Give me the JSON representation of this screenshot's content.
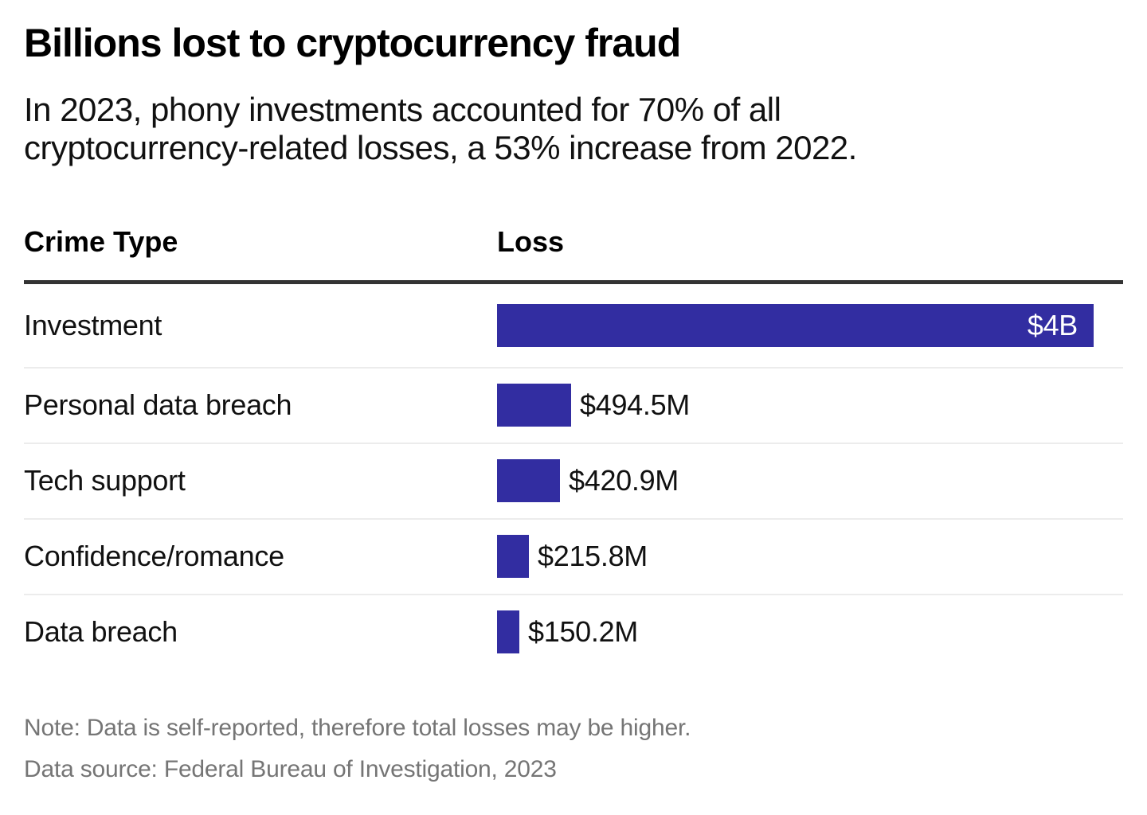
{
  "header": {
    "title": "Billions lost to cryptocurrency fraud",
    "subtitle_lines": [
      "In 2023, phony investments accounted for 70% of all",
      "cryptocurrency-related losses, a 53% increase from 2022."
    ]
  },
  "table": {
    "col_crime_type": "Crime Type",
    "col_loss": "Loss"
  },
  "chart_data": {
    "type": "bar",
    "orientation": "horizontal",
    "title": "Billions lost to cryptocurrency fraud",
    "subtitle": "In 2023, phony investments accounted for 70% of all cryptocurrency-related losses, a 53% increase from 2022.",
    "categories": [
      "Investment",
      "Personal data breach",
      "Tech support",
      "Confidence/romance",
      "Data breach"
    ],
    "values_millions_usd": [
      4000,
      494.5,
      420.9,
      215.8,
      150.2
    ],
    "value_labels": [
      "$4B",
      "$494.5M",
      "$420.9M",
      "$215.8M",
      "$150.2M"
    ],
    "xlabel": "Loss",
    "ylabel": "Crime Type",
    "xlim_millions_usd": [
      0,
      4200
    ],
    "bar_color": "#322da1",
    "grid": false,
    "legend": false
  },
  "footer": {
    "note": "Note: Data is self-reported, therefore total losses may be higher.",
    "source": "Data source: Federal Bureau of Investigation, 2023"
  }
}
